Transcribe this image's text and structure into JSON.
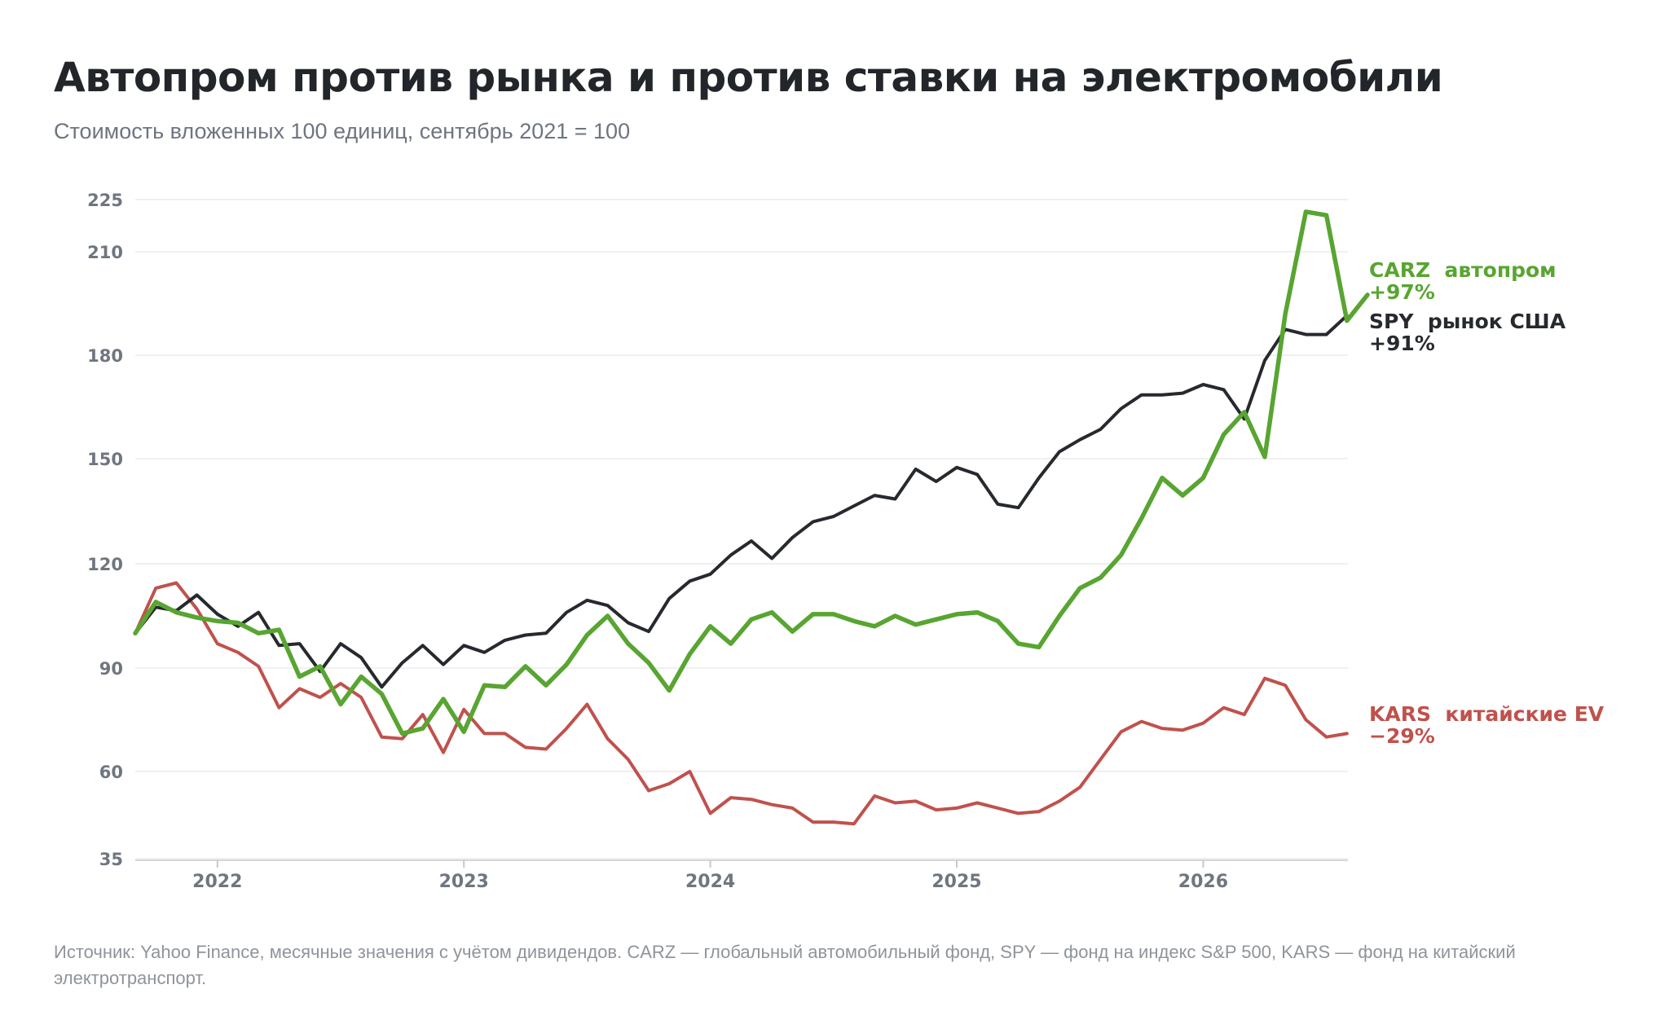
{
  "title": "Автопром против рынка и против ставки на электромобили",
  "subtitle": "Стоимость вложенных 100 единиц, сентябрь 2021 = 100",
  "source": "Источник: Yahoo Finance, месячные значения с учётом дивидендов. CARZ — глобальный автомобильный фонд, SPY — фонд на индекс S&P 500, KARS — фонд на китайский электротранспорт.",
  "chart_data": {
    "type": "line",
    "x_start": "2021-09",
    "x_step": "month",
    "x_tick_labels": [
      "2022",
      "2023",
      "2024",
      "2025",
      "2026"
    ],
    "y_ticks": [
      35,
      60,
      90,
      120,
      150,
      180,
      210,
      225
    ],
    "ylim": [
      35,
      225
    ],
    "grid": true,
    "legend": "direct labels at line ends",
    "series": [
      {
        "name": "CARZ",
        "label_name": "CARZ  автопром",
        "label_change": "+97%",
        "color": "#58a531",
        "values": [
          100,
          109,
          106,
          104.5,
          103.5,
          103,
          100,
          101,
          87.5,
          90.5,
          79.5,
          87.5,
          82.5,
          71,
          72.5,
          81,
          71.5,
          85,
          84.5,
          90.5,
          85,
          91,
          99.5,
          105,
          97,
          91.5,
          83.5,
          94,
          102,
          97,
          104,
          106,
          100.5,
          105.5,
          105.5,
          103.5,
          102,
          105,
          102.5,
          104,
          105.5,
          106,
          103.5,
          97,
          96,
          105,
          113,
          116,
          122.5,
          133,
          144.5,
          139.5,
          144.5,
          157,
          163.5,
          150.5,
          192,
          221.5,
          220.5,
          190,
          197.5
        ]
      },
      {
        "name": "SPY",
        "label_name": "SPY  рынок США",
        "label_change": "+91%",
        "color": "#26292e",
        "values": [
          100,
          107.5,
          106.5,
          111,
          105.5,
          102,
          106,
          96.5,
          97,
          89,
          97,
          93,
          84.5,
          91.5,
          96.5,
          91,
          96.5,
          94.5,
          98,
          99.5,
          100,
          106,
          109.5,
          108,
          103,
          100.5,
          110,
          115,
          117,
          122.5,
          126.5,
          121.5,
          127.5,
          132,
          133.5,
          136.5,
          139.5,
          138.5,
          147,
          143.5,
          147.5,
          145.5,
          137,
          136,
          144.5,
          152,
          155.5,
          158.5,
          164.5,
          168.5,
          168.5,
          169,
          171.5,
          170,
          161.5,
          178.5,
          187.5,
          186,
          186,
          191.5
        ]
      },
      {
        "name": "KARS",
        "label_name": "KARS  китайские EV",
        "label_change": "−29%",
        "color": "#c0514d",
        "values": [
          100,
          113,
          114.5,
          107,
          97,
          94.5,
          90.5,
          78.5,
          84,
          81.5,
          85.5,
          81.5,
          70,
          69.5,
          76.5,
          65.5,
          78,
          71,
          71,
          67,
          66.5,
          72.5,
          79.5,
          69.5,
          63.5,
          54.5,
          56.5,
          60,
          48,
          52.5,
          52,
          50.5,
          49.5,
          45.5,
          45.5,
          45,
          53,
          51,
          51.5,
          49,
          49.5,
          51,
          49.5,
          48,
          48.5,
          51.5,
          55.5,
          63.5,
          71.5,
          74.5,
          72.5,
          72,
          74,
          78.5,
          76.5,
          87,
          85,
          75,
          70,
          71
        ]
      }
    ]
  }
}
